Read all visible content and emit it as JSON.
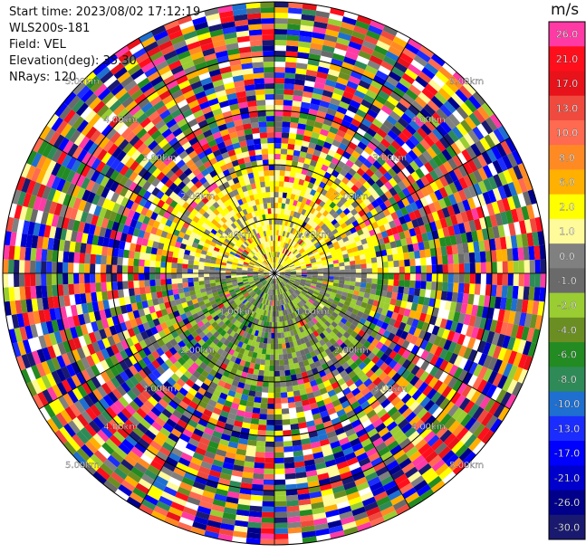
{
  "header": {
    "start_time": "Start time: 2023/08/02 17:12:19",
    "instrument": "WLS200s-181",
    "field": "Field: VEL",
    "elevation": "Elevation(deg): 35.30",
    "nrays": "NRays: 120"
  },
  "chart_data": {
    "type": "ppi-polar",
    "field": "VEL",
    "units": "m/s",
    "n_rays": 120,
    "range_rings_km": [
      1.0,
      2.0,
      3.0,
      4.0,
      5.0
    ],
    "range_ring_labels": [
      "1.00km",
      "2.00km",
      "3.00km",
      "4.00km",
      "5.00km"
    ],
    "max_range_km": 5.0,
    "colorbar": {
      "title": "m/s",
      "ticks": [
        "26.0",
        "21.0",
        "17.0",
        "13.0",
        "10.0",
        "8.0",
        "6.0",
        "2.0",
        "1.0",
        "0.0",
        "-1.0",
        "-2.0",
        "-4.0",
        "-6.0",
        "-8.0",
        "-10.0",
        "-13.0",
        "-17.0",
        "-21.0",
        "-26.0",
        "-30.0"
      ],
      "colors": [
        "#ff3aa5",
        "#ff0f1c",
        "#e8121a",
        "#f04a3e",
        "#ff6a50",
        "#ff8a24",
        "#ffb000",
        "#ffff00",
        "#fffa9a",
        "#808080",
        "#6a6a6a",
        "#9acd32",
        "#6b8e23",
        "#228b22",
        "#2e8b57",
        "#1e6fd0",
        "#1b2cff",
        "#0000ff",
        "#0000cd",
        "#00008b",
        "#191970"
      ]
    },
    "grid": true
  }
}
